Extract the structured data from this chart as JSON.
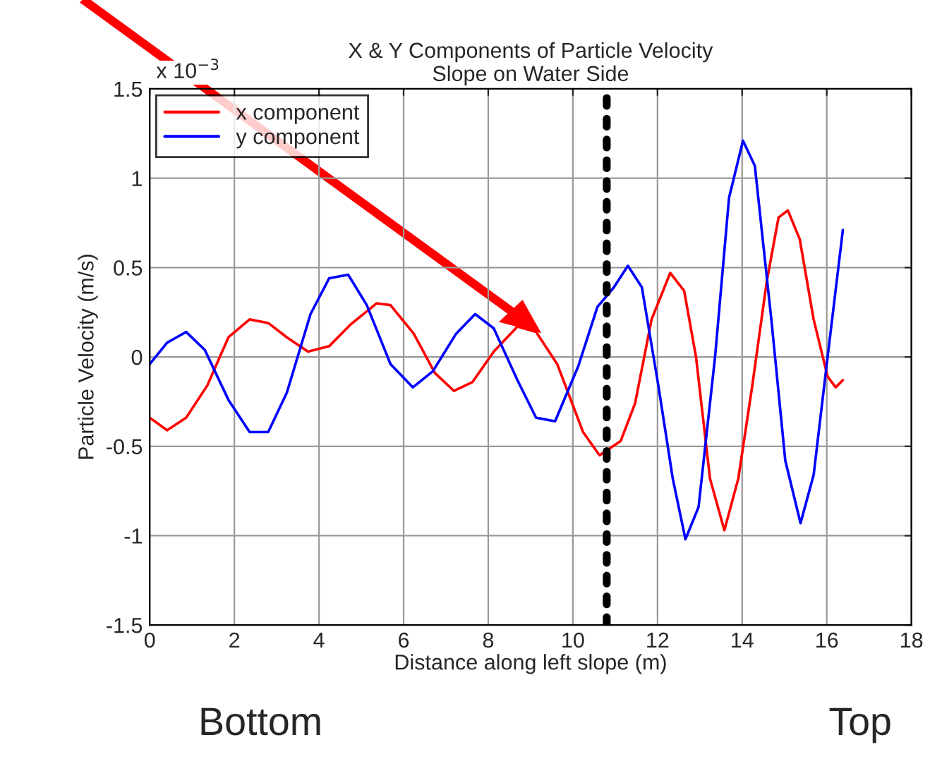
{
  "chart_data": {
    "type": "line",
    "title": "X & Y Components of Particle Velocity\nSlope on Water Side",
    "xlabel": "Distance along left slope (m)",
    "ylabel": "Particle Velocity (m/s)",
    "annotations": [
      "x 10$^{−3}$",
      "Bottom",
      "Top"
    ],
    "series": [
      {
        "name": "x component",
        "color": "#ff0000",
        "x": [
          0,
          0.41,
          0.86,
          1.36,
          1.86,
          2.36,
          2.8,
          3.24,
          3.74,
          4.24,
          4.74,
          5.36,
          5.69,
          6.24,
          6.74,
          7.19,
          7.63,
          8.13,
          8.69,
          9.13,
          9.63,
          10.24,
          10.63,
          11.13,
          11.47,
          11.86,
          12.3,
          12.63,
          12.91,
          13.24,
          13.58,
          13.91,
          14.24,
          14.58,
          14.86,
          15.08,
          15.36,
          15.69,
          16.02,
          16.21,
          16.38
        ],
        "values": [
          -0.34,
          -0.41,
          -0.34,
          -0.16,
          0.11,
          0.21,
          0.19,
          0.11,
          0.03,
          0.06,
          0.18,
          0.3,
          0.29,
          0.13,
          -0.09,
          -0.19,
          -0.14,
          0.03,
          0.17,
          0.14,
          -0.04,
          -0.42,
          -0.55,
          -0.47,
          -0.26,
          0.21,
          0.47,
          0.37,
          0,
          -0.68,
          -0.97,
          -0.68,
          -0.16,
          0.42,
          0.78,
          0.82,
          0.66,
          0.21,
          -0.11,
          -0.17,
          -0.13
        ]
      },
      {
        "name": "y component",
        "color": "#0000ff",
        "x": [
          0,
          0.41,
          0.86,
          1.3,
          1.86,
          2.36,
          2.8,
          3.24,
          3.8,
          4.24,
          4.69,
          5.13,
          5.69,
          6.22,
          6.69,
          7.24,
          7.69,
          8.13,
          8.69,
          9.13,
          9.58,
          10.13,
          10.58,
          10.97,
          11.3,
          11.63,
          12.02,
          12.36,
          12.66,
          12.97,
          13.36,
          13.69,
          14.02,
          14.3,
          14.69,
          15.02,
          15.38,
          15.69,
          16.02,
          16.38
        ],
        "values": [
          -0.04,
          0.08,
          0.14,
          0.04,
          -0.24,
          -0.42,
          -0.42,
          -0.2,
          0.24,
          0.44,
          0.46,
          0.29,
          -0.04,
          -0.17,
          -0.08,
          0.13,
          0.24,
          0.16,
          -0.13,
          -0.34,
          -0.36,
          -0.05,
          0.28,
          0.39,
          0.51,
          0.39,
          -0.16,
          -0.68,
          -1.02,
          -0.84,
          0,
          0.89,
          1.21,
          1.07,
          0.21,
          -0.58,
          -0.93,
          -0.66,
          0,
          0.71
        ]
      }
    ],
    "ref_lines": [
      {
        "axis": "x",
        "value": 10.8,
        "color": "#000000",
        "line_style": "dotted"
      }
    ],
    "xlim": [
      0,
      18
    ],
    "xticks": [
      0,
      2,
      4,
      6,
      8,
      10,
      12,
      14,
      16,
      18
    ],
    "ylim": [
      -1.5,
      1.5
    ],
    "yticks": [
      -1.5,
      -1,
      -0.5,
      0,
      0.5,
      1,
      1.5
    ],
    "grid": true,
    "legend": "top left",
    "line_style": "solid",
    "marker": "none"
  }
}
